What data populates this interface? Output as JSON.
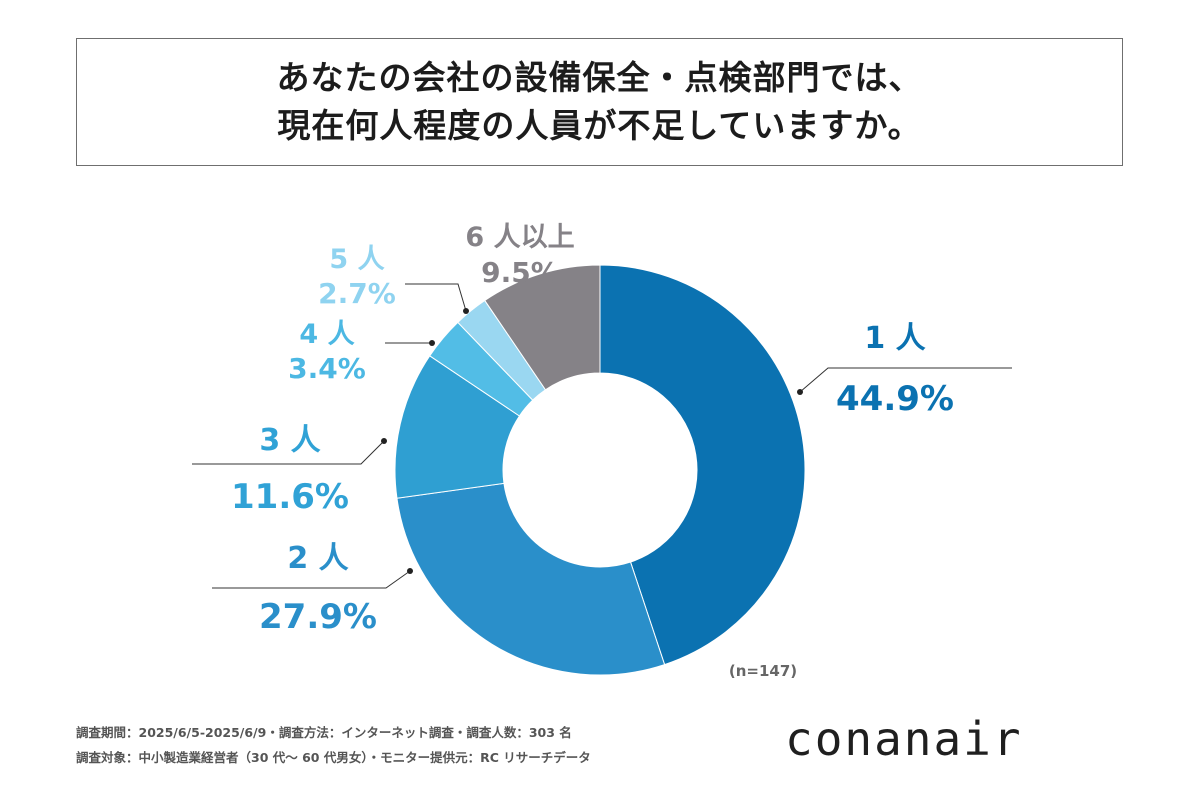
{
  "title": {
    "line1": "あなたの会社の設備保全・点検部門では、",
    "line2": "現在何人程度の人員が不足していますか。"
  },
  "chart_data": {
    "type": "pie",
    "donut": true,
    "start": "top, clockwise",
    "slices": [
      {
        "label": "1 人",
        "value": 44.9,
        "display": "44.9%",
        "color": "#0b72b1",
        "label_color": "#0b72b1"
      },
      {
        "label": "2 人",
        "value": 27.9,
        "display": "27.9%",
        "color": "#2a8fca",
        "label_color": "#2a8fca"
      },
      {
        "label": "3 人",
        "value": 11.6,
        "display": "11.6%",
        "color": "#2f9fd2",
        "label_color": "#30a2d6"
      },
      {
        "label": "4 人",
        "value": 3.4,
        "display": "3.4%",
        "color": "#52bde6",
        "label_color": "#4cb8e3"
      },
      {
        "label": "5 人",
        "value": 2.7,
        "display": "2.7%",
        "color": "#9ad7f1",
        "label_color": "#8fd3f0"
      },
      {
        "label": "6 人以上",
        "value": 9.5,
        "display": "9.5%",
        "color": "#858287",
        "label_color": "#858287"
      }
    ],
    "n_label": "(n=147)"
  },
  "footer": {
    "line1": "調査期間：2025/6/5-2025/6/9・調査方法：インターネット調査・調査人数：303 名",
    "line2": "調査対象：中小製造業経営者（30 代～ 60 代男女）・モニター提供元：RC リサーチデータ"
  },
  "logo": "conanair"
}
